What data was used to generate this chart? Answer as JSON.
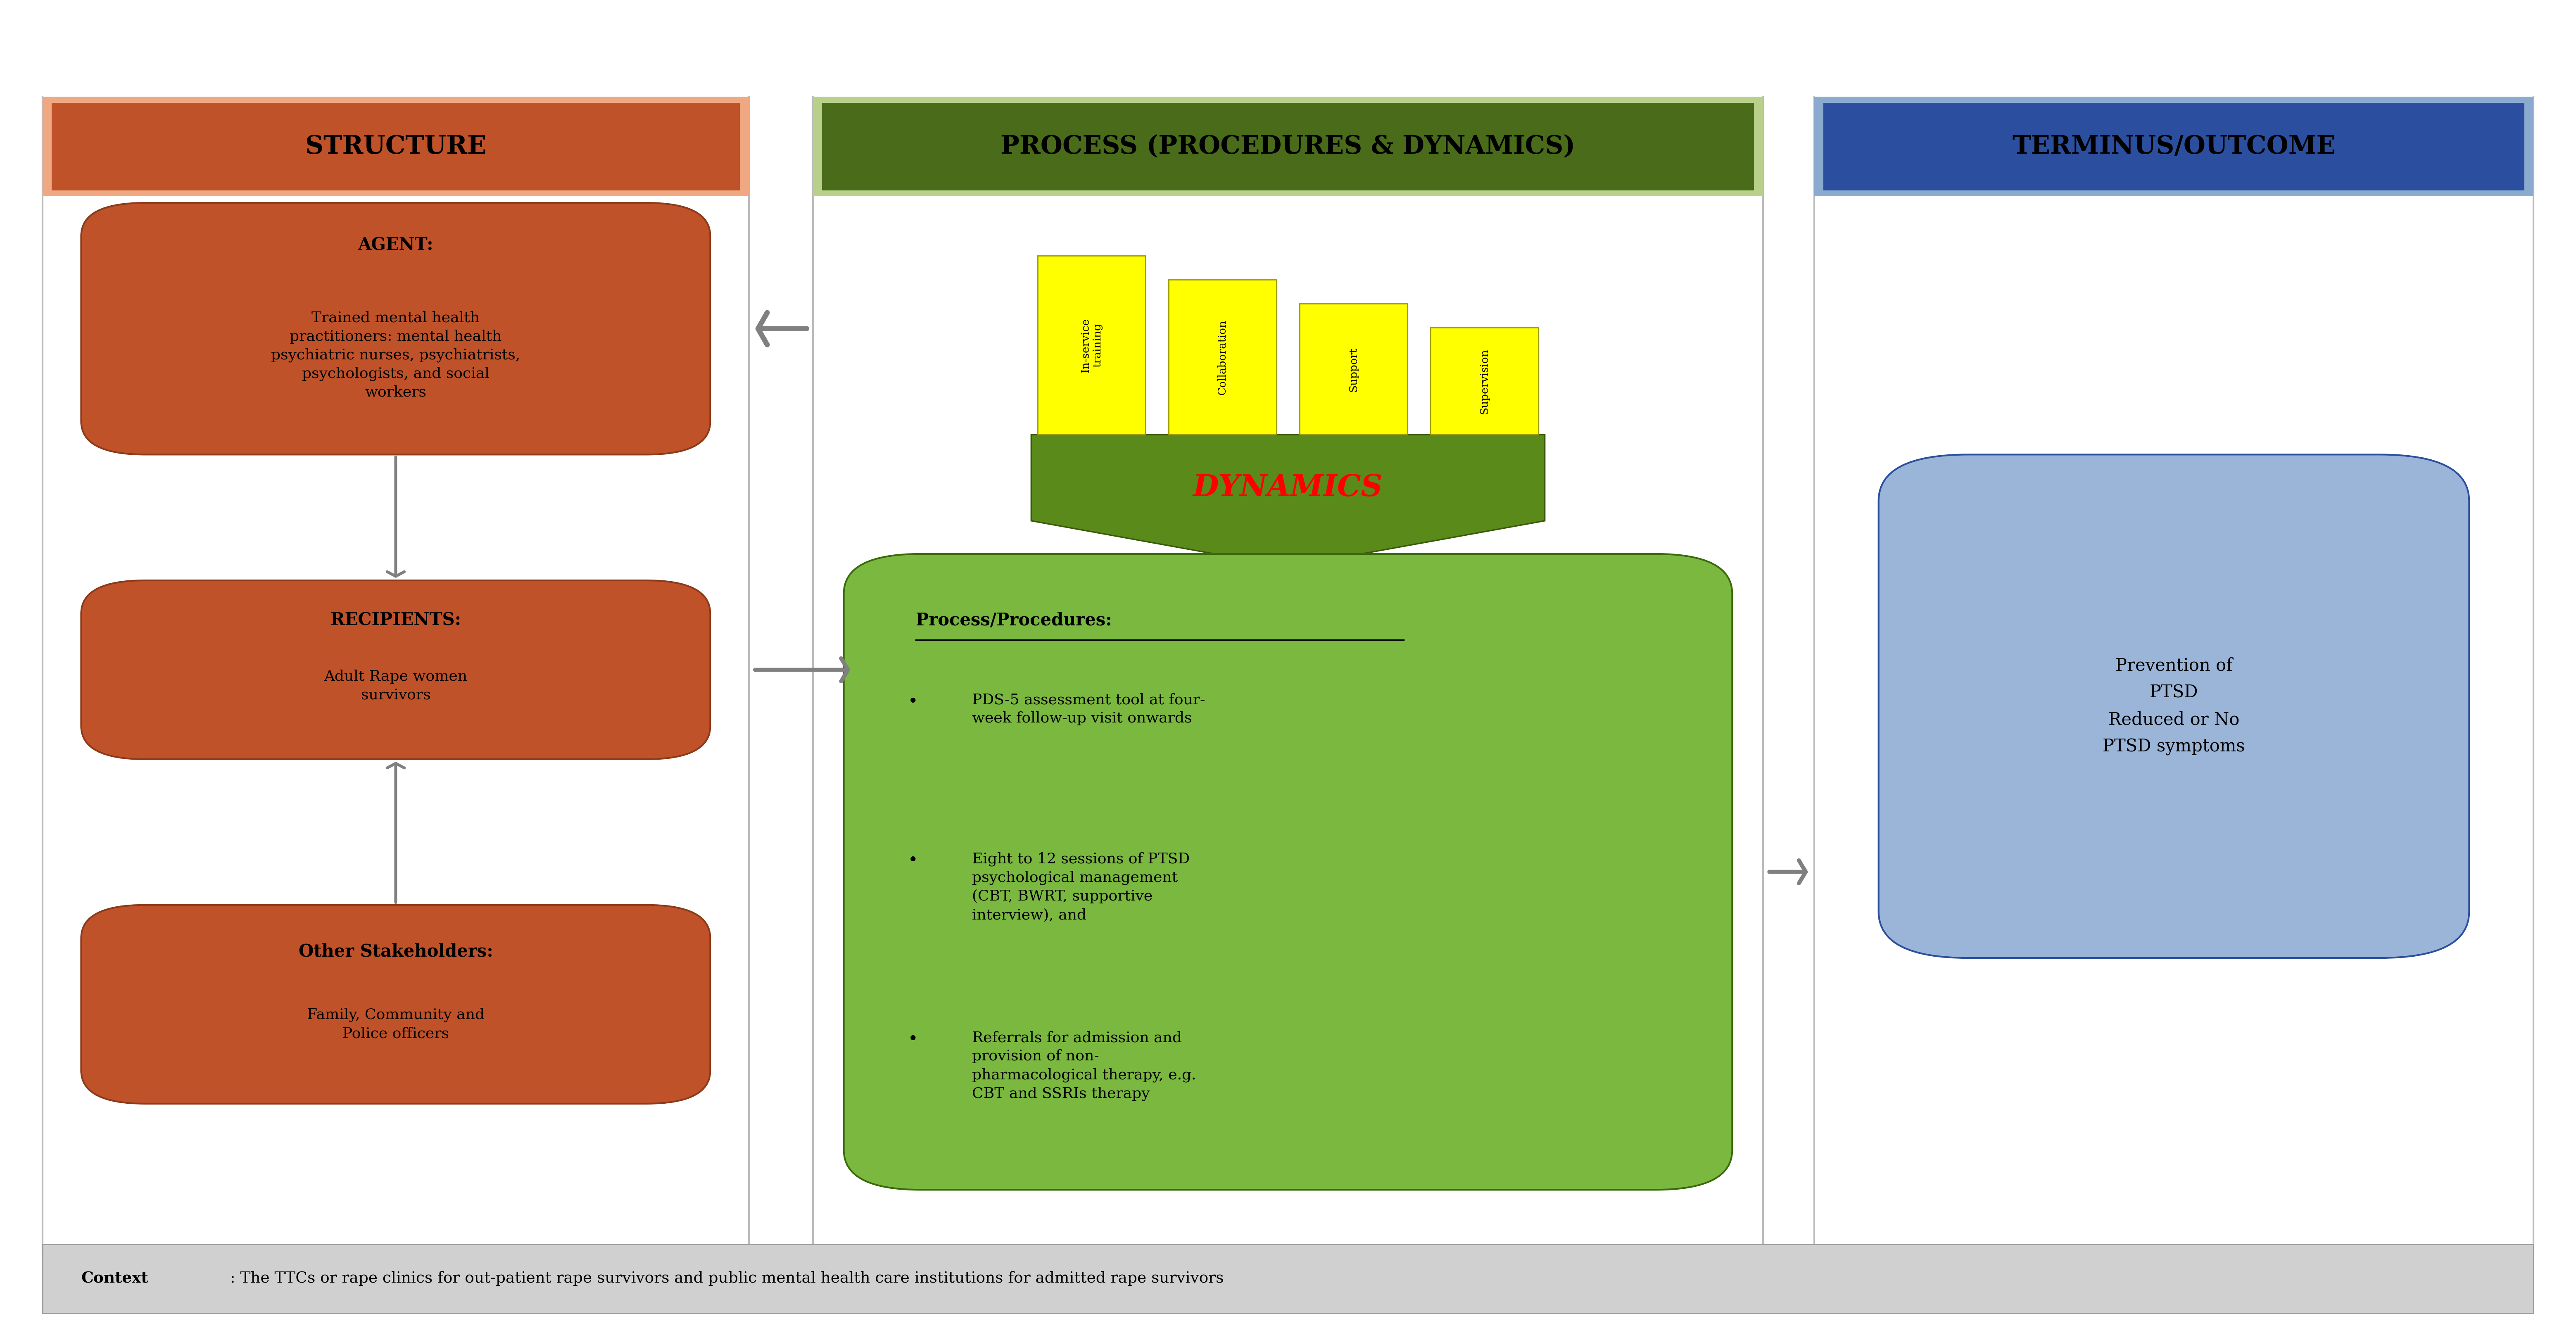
{
  "title_structure": "STRUCTURE",
  "title_process": "PROCESS (PROCEDURES & DYNAMICS)",
  "title_outcome": "TERMINUS/OUTCOME",
  "header_structure_color": "#C0522A",
  "header_structure_bg": "#F0A882",
  "header_process_color": "#4A6B1A",
  "header_process_bg": "#B8D08A",
  "header_outcome_color": "#2B4F9E",
  "header_outcome_bg": "#8BAAD0",
  "agent_title": "AGENT:",
  "agent_text": "Trained mental health\npractitioners: mental health\npsychiatric nurses, psychiatrists,\npsychologists, and social\nworkers",
  "recipients_title": "RECIPIENTS:",
  "recipients_text": "Adult Rape women\nsurvivors",
  "stakeholders_title": "Other Stakeholders:",
  "stakeholders_text": "Family, Community and\nPolice officers",
  "box_orange_color": "#C0522A",
  "box_orange_border": "#8B3A1A",
  "dynamics_label": "DYNAMICS",
  "dynamics_color": "#FF0000",
  "dynamics_bg": "#5A8A1A",
  "process_box_bg": "#7AB840",
  "process_title": "Process/Procedures:",
  "process_bullets": [
    "PDS-5 assessment tool at four-\nweek follow-up visit onwards",
    "Eight to 12 sessions of PTSD\npsychological management\n(CBT, BWRT, supportive\ninterview), and",
    "Referrals for admission and\nprovision of non-\npharmacological therapy, e.g.\nCBT and SSRIs therapy"
  ],
  "yellow_tabs": [
    "In-service\ntraining",
    "Collaboration",
    "Support",
    "Supervision"
  ],
  "yellow_color": "#FFFF00",
  "yellow_border": "#999900",
  "outcome_box_bg": "#9BB5D8",
  "outcome_box_border": "#2B4F9E",
  "outcome_text": "Prevention of\nPTSD\nReduced or No\nPTSD symptoms",
  "context_bold": "Context",
  "context_rest": ": The TTCs or rape clinics for out-patient rape survivors and public mental health care institutions for admitted rape survivors",
  "context_bg": "#D0D0D0",
  "bg_color": "#FFFFFF",
  "arrow_color": "#808080"
}
